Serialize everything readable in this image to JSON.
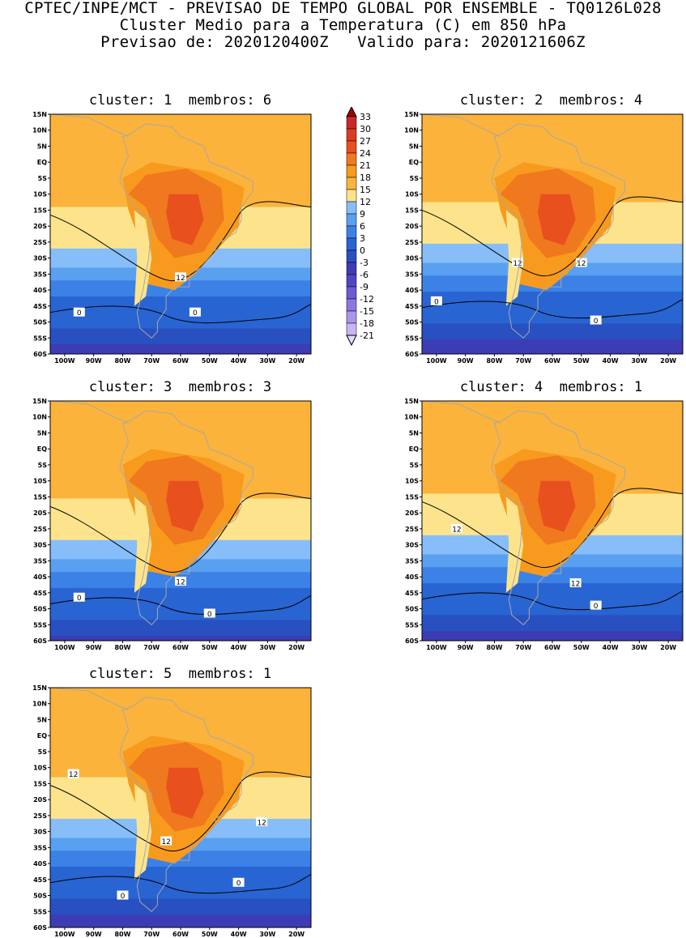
{
  "header": {
    "line1": "CPTEC/INPE/MCT - PREVISAO DE TEMPO GLOBAL POR ENSEMBLE - TQ0126L028",
    "line2": "Cluster Medio para a Temperatura (C) em 850 hPa",
    "line3": "Previsao de: 2020120400Z   Valido para: 2020121606Z"
  },
  "axes": {
    "lat_ticks": [
      "15N",
      "10N",
      "5N",
      "EQ",
      "5S",
      "10S",
      "15S",
      "20S",
      "25S",
      "30S",
      "35S",
      "40S",
      "45S",
      "50S",
      "55S",
      "60S"
    ],
    "lon_ticks": [
      "100W",
      "90W",
      "80W",
      "70W",
      "60W",
      "50W",
      "40W",
      "30W",
      "20W"
    ]
  },
  "panels": [
    {
      "title": "cluster: 1  membros: 6",
      "contour_labels": [
        "12",
        "0",
        "0"
      ]
    },
    {
      "title": "cluster: 2  membros: 4",
      "contour_labels": [
        "12",
        "12",
        "0",
        "0"
      ]
    },
    {
      "title": "cluster: 3  membros: 3",
      "contour_labels": [
        "12",
        "0",
        "0"
      ]
    },
    {
      "title": "cluster: 4  membros: 1",
      "contour_labels": [
        "12",
        "12",
        "0"
      ]
    },
    {
      "title": "cluster: 5  membros: 1",
      "contour_labels": [
        "12",
        "12",
        "12",
        "0",
        "0"
      ]
    }
  ],
  "colorbar": {
    "levels": [
      "33",
      "30",
      "27",
      "24",
      "21",
      "18",
      "15",
      "12",
      "9",
      "6",
      "3",
      "0",
      "-3",
      "-6",
      "-9",
      "-12",
      "-15",
      "-18",
      "-21"
    ],
    "colors": [
      "#a00000",
      "#c8282a",
      "#dc3c1e",
      "#e8501e",
      "#f0781e",
      "#f89a1e",
      "#fbb33c",
      "#fde48c",
      "#87befa",
      "#5aa0f0",
      "#3c82e6",
      "#2864d2",
      "#2850c0",
      "#3c3cb4",
      "#5046c3",
      "#6e5ad2",
      "#8c78e1",
      "#aa96eb",
      "#c8b4f5",
      "#e6dcfa"
    ],
    "palette": {
      "ocean_bg": "#2d5fd7",
      "coast": "#a8a8a8",
      "contour": "#000000"
    }
  }
}
